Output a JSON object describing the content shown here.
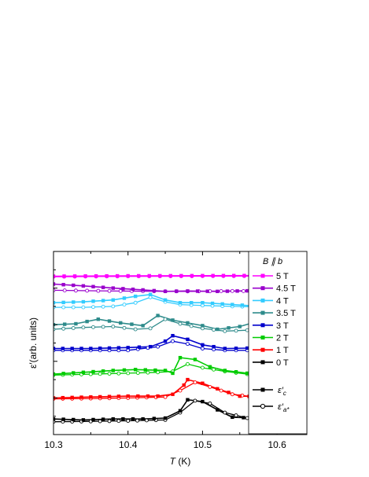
{
  "chart_data": {
    "type": "line",
    "xlabel_sym": "T",
    "xlabel_unit": " (K)",
    "ylabel": "ε′(arb. units)",
    "legend_title": "B ∥ b",
    "xlim": [
      10.3,
      10.64
    ],
    "x_ticks": [
      "10.3",
      "10.4",
      "10.5",
      "10.6"
    ],
    "x_tick_values": [
      10.3,
      10.4,
      10.5,
      10.6
    ],
    "ylim": [
      0,
      10
    ],
    "y_ticks_labeled": false,
    "grid": false,
    "legend_position": "right",
    "marker_legend": [
      {
        "symbol": "ε′",
        "subscript": "c",
        "marker": "filled-square"
      },
      {
        "symbol": "ε′",
        "subscript": "a*",
        "marker": "open-circle"
      }
    ],
    "series": [
      {
        "name": "5 T",
        "color": "#ff00ff",
        "c": [
          [
            10.3,
            8.65
          ],
          [
            10.4,
            8.67
          ],
          [
            10.5,
            8.68
          ],
          [
            10.64,
            8.69
          ]
        ],
        "a": [
          [
            10.3,
            8.62
          ],
          [
            10.4,
            8.64
          ],
          [
            10.5,
            8.65
          ],
          [
            10.64,
            8.66
          ]
        ]
      },
      {
        "name": "4.5 T",
        "color": "#9900cc",
        "c": [
          [
            10.3,
            8.22
          ],
          [
            10.34,
            8.12
          ],
          [
            10.38,
            8.0
          ],
          [
            10.42,
            7.9
          ],
          [
            10.45,
            7.82
          ],
          [
            10.48,
            7.84
          ],
          [
            10.52,
            7.82
          ],
          [
            10.56,
            7.85
          ],
          [
            10.6,
            7.82
          ],
          [
            10.64,
            7.84
          ]
        ],
        "a": [
          [
            10.3,
            7.88
          ],
          [
            10.36,
            7.85
          ],
          [
            10.42,
            7.83
          ],
          [
            10.48,
            7.82
          ],
          [
            10.54,
            7.84
          ],
          [
            10.6,
            7.82
          ],
          [
            10.64,
            7.83
          ]
        ]
      },
      {
        "name": "4 T",
        "color": "#33ccff",
        "c": [
          [
            10.3,
            7.2
          ],
          [
            10.34,
            7.25
          ],
          [
            10.38,
            7.35
          ],
          [
            10.41,
            7.55
          ],
          [
            10.43,
            7.65
          ],
          [
            10.45,
            7.35
          ],
          [
            10.47,
            7.2
          ],
          [
            10.5,
            7.2
          ],
          [
            10.54,
            7.1
          ],
          [
            10.58,
            7.0
          ],
          [
            10.62,
            6.95
          ],
          [
            10.64,
            6.97
          ]
        ],
        "a": [
          [
            10.3,
            6.95
          ],
          [
            10.34,
            6.95
          ],
          [
            10.38,
            7.0
          ],
          [
            10.41,
            7.2
          ],
          [
            10.43,
            7.5
          ],
          [
            10.45,
            7.25
          ],
          [
            10.47,
            7.1
          ],
          [
            10.5,
            7.05
          ],
          [
            10.54,
            7.0
          ],
          [
            10.58,
            6.97
          ],
          [
            10.62,
            6.95
          ],
          [
            10.64,
            6.95
          ]
        ]
      },
      {
        "name": "3.5 T",
        "color": "#2e8b8b",
        "c": [
          [
            10.3,
            6.0
          ],
          [
            10.33,
            6.05
          ],
          [
            10.36,
            6.3
          ],
          [
            10.39,
            6.1
          ],
          [
            10.42,
            5.95
          ],
          [
            10.44,
            6.5
          ],
          [
            10.46,
            6.25
          ],
          [
            10.48,
            6.1
          ],
          [
            10.5,
            5.95
          ],
          [
            10.52,
            5.75
          ],
          [
            10.55,
            5.9
          ],
          [
            10.58,
            6.25
          ],
          [
            10.61,
            5.8
          ],
          [
            10.64,
            5.7
          ]
        ],
        "a": [
          [
            10.3,
            5.75
          ],
          [
            10.34,
            5.85
          ],
          [
            10.38,
            5.9
          ],
          [
            10.41,
            5.75
          ],
          [
            10.43,
            5.8
          ],
          [
            10.45,
            6.3
          ],
          [
            10.47,
            6.05
          ],
          [
            10.5,
            5.8
          ],
          [
            10.53,
            5.65
          ],
          [
            10.56,
            5.7
          ],
          [
            10.59,
            5.65
          ],
          [
            10.62,
            5.6
          ],
          [
            10.64,
            5.6
          ]
        ]
      },
      {
        "name": "3 T",
        "color": "#0000cc",
        "c": [
          [
            10.3,
            4.7
          ],
          [
            10.35,
            4.7
          ],
          [
            10.4,
            4.75
          ],
          [
            10.43,
            4.8
          ],
          [
            10.45,
            5.1
          ],
          [
            10.46,
            5.4
          ],
          [
            10.48,
            5.2
          ],
          [
            10.5,
            4.9
          ],
          [
            10.53,
            4.7
          ],
          [
            10.56,
            4.72
          ],
          [
            10.6,
            4.7
          ],
          [
            10.64,
            4.7
          ]
        ],
        "a": [
          [
            10.3,
            4.6
          ],
          [
            10.35,
            4.6
          ],
          [
            10.4,
            4.6
          ],
          [
            10.44,
            4.8
          ],
          [
            10.46,
            5.1
          ],
          [
            10.48,
            4.95
          ],
          [
            10.5,
            4.7
          ],
          [
            10.53,
            4.6
          ],
          [
            10.56,
            4.6
          ],
          [
            10.6,
            4.6
          ],
          [
            10.64,
            4.6
          ]
        ]
      },
      {
        "name": "2 T",
        "color": "#00cc00",
        "c": [
          [
            10.3,
            3.3
          ],
          [
            10.34,
            3.4
          ],
          [
            10.38,
            3.5
          ],
          [
            10.41,
            3.55
          ],
          [
            10.45,
            3.5
          ],
          [
            10.46,
            3.35
          ],
          [
            10.47,
            4.2
          ],
          [
            10.49,
            4.1
          ],
          [
            10.51,
            3.7
          ],
          [
            10.53,
            3.5
          ],
          [
            10.56,
            3.35
          ],
          [
            10.6,
            3.3
          ],
          [
            10.64,
            3.3
          ]
        ],
        "a": [
          [
            10.3,
            3.25
          ],
          [
            10.35,
            3.3
          ],
          [
            10.4,
            3.35
          ],
          [
            10.44,
            3.4
          ],
          [
            10.46,
            3.45
          ],
          [
            10.48,
            3.85
          ],
          [
            10.5,
            3.65
          ],
          [
            10.53,
            3.45
          ],
          [
            10.56,
            3.3
          ],
          [
            10.6,
            3.28
          ],
          [
            10.64,
            3.28
          ]
        ]
      },
      {
        "name": "1 T",
        "color": "#ff0000",
        "c": [
          [
            10.3,
            2.0
          ],
          [
            10.35,
            2.05
          ],
          [
            10.4,
            2.1
          ],
          [
            10.44,
            2.1
          ],
          [
            10.46,
            2.2
          ],
          [
            10.475,
            2.7
          ],
          [
            10.48,
            3.0
          ],
          [
            10.5,
            2.8
          ],
          [
            10.52,
            2.5
          ],
          [
            10.55,
            2.1
          ],
          [
            10.6,
            2.05
          ],
          [
            10.64,
            2.05
          ]
        ],
        "a": [
          [
            10.3,
            1.95
          ],
          [
            10.35,
            1.97
          ],
          [
            10.4,
            2.0
          ],
          [
            10.45,
            2.05
          ],
          [
            10.47,
            2.4
          ],
          [
            10.49,
            2.85
          ],
          [
            10.51,
            2.6
          ],
          [
            10.54,
            2.2
          ],
          [
            10.58,
            2.0
          ],
          [
            10.64,
            2.0
          ]
        ]
      },
      {
        "name": "0 T",
        "color": "#000000",
        "c": [
          [
            10.3,
            0.85
          ],
          [
            10.34,
            0.8
          ],
          [
            10.38,
            0.85
          ],
          [
            10.42,
            0.85
          ],
          [
            10.45,
            0.9
          ],
          [
            10.47,
            1.3
          ],
          [
            10.48,
            1.9
          ],
          [
            10.5,
            1.8
          ],
          [
            10.52,
            1.35
          ],
          [
            10.54,
            0.95
          ],
          [
            10.57,
            0.9
          ],
          [
            10.6,
            0.9
          ],
          [
            10.64,
            0.95
          ]
        ],
        "a": [
          [
            10.3,
            0.7
          ],
          [
            10.35,
            0.72
          ],
          [
            10.4,
            0.75
          ],
          [
            10.45,
            0.8
          ],
          [
            10.47,
            1.2
          ],
          [
            10.49,
            1.85
          ],
          [
            10.51,
            1.7
          ],
          [
            10.53,
            1.2
          ],
          [
            10.56,
            0.9
          ],
          [
            10.6,
            0.88
          ],
          [
            10.64,
            0.88
          ]
        ]
      }
    ]
  }
}
